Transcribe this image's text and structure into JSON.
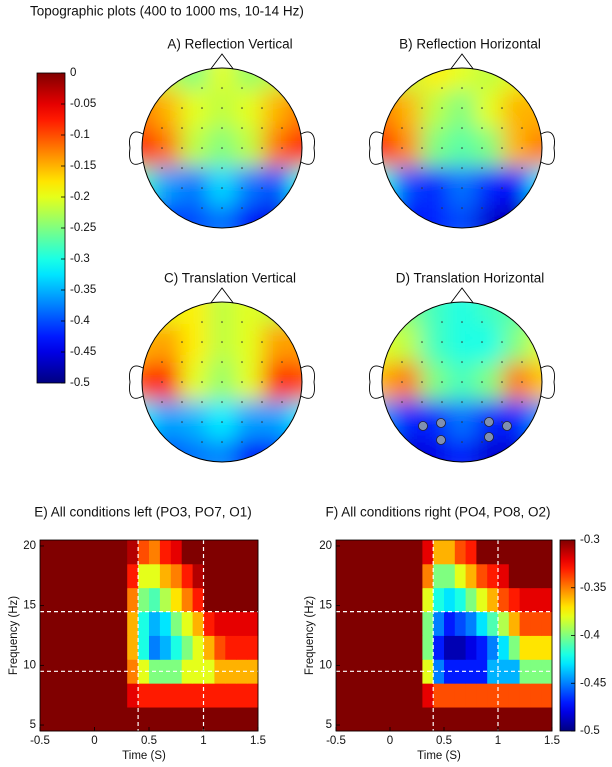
{
  "header": {
    "title": "Topographic plots (400 to 1000 ms, 10-14 Hz)"
  },
  "chart_data": [
    {
      "type": "topomap",
      "colormap": "jet",
      "clim": [
        -0.5,
        0
      ],
      "cticks": [
        0,
        -0.05,
        -0.1,
        -0.15,
        -0.2,
        -0.25,
        -0.3,
        -0.35,
        -0.4,
        -0.45,
        -0.5
      ],
      "panels": [
        {
          "title": "A) Reflection Vertical",
          "values": [
            [
              -0.2,
              -0.22,
              -0.25,
              -0.2,
              -0.24,
              -0.22,
              -0.2
            ],
            [
              -0.12,
              -0.15,
              -0.2,
              -0.22,
              -0.2,
              -0.15,
              -0.12
            ],
            [
              -0.08,
              -0.12,
              -0.22,
              -0.25,
              -0.22,
              -0.12,
              -0.07
            ],
            [
              -0.28,
              -0.36,
              -0.38,
              -0.33,
              -0.38,
              -0.4,
              -0.3
            ],
            [
              -0.35,
              -0.42,
              -0.4,
              -0.38,
              -0.44,
              -0.45,
              -0.38
            ]
          ]
        },
        {
          "title": "B) Reflection Horizontal",
          "values": [
            [
              -0.22,
              -0.22,
              -0.18,
              -0.2,
              -0.22,
              -0.2,
              -0.2
            ],
            [
              -0.12,
              -0.15,
              -0.22,
              -0.25,
              -0.2,
              -0.15,
              -0.15
            ],
            [
              -0.07,
              -0.13,
              -0.25,
              -0.27,
              -0.25,
              -0.15,
              -0.12
            ],
            [
              -0.3,
              -0.4,
              -0.42,
              -0.38,
              -0.42,
              -0.44,
              -0.32
            ],
            [
              -0.36,
              -0.44,
              -0.42,
              -0.4,
              -0.46,
              -0.48,
              -0.4
            ]
          ]
        },
        {
          "title": "C) Translation Vertical",
          "values": [
            [
              -0.2,
              -0.2,
              -0.18,
              -0.22,
              -0.2,
              -0.22,
              -0.2
            ],
            [
              -0.15,
              -0.14,
              -0.18,
              -0.22,
              -0.2,
              -0.14,
              -0.14
            ],
            [
              -0.1,
              -0.07,
              -0.2,
              -0.24,
              -0.2,
              -0.08,
              -0.1
            ],
            [
              -0.32,
              -0.36,
              -0.35,
              -0.32,
              -0.36,
              -0.36,
              -0.32
            ],
            [
              -0.36,
              -0.4,
              -0.38,
              -0.37,
              -0.44,
              -0.42,
              -0.38
            ]
          ]
        },
        {
          "title": "D) Translation Horizontal",
          "values": [
            [
              -0.25,
              -0.25,
              -0.28,
              -0.3,
              -0.28,
              -0.27,
              -0.25
            ],
            [
              -0.2,
              -0.22,
              -0.28,
              -0.3,
              -0.3,
              -0.25,
              -0.2
            ],
            [
              -0.15,
              -0.12,
              -0.25,
              -0.28,
              -0.25,
              -0.12,
              -0.16
            ],
            [
              -0.36,
              -0.42,
              -0.42,
              -0.38,
              -0.42,
              -0.42,
              -0.36
            ],
            [
              -0.42,
              -0.46,
              -0.45,
              -0.42,
              -0.46,
              -0.46,
              -0.42
            ]
          ]
        }
      ]
    },
    {
      "type": "heatmap",
      "colormap": "jet",
      "clim": [
        -0.5,
        -0.3
      ],
      "cticks": [
        -0.3,
        -0.35,
        -0.4,
        -0.45,
        -0.5
      ],
      "xlabel": "Time (S)",
      "ylabel": "Frequency (Hz)",
      "xlim": [
        -0.5,
        1.5
      ],
      "ylim": [
        4.5,
        20.5
      ],
      "xticks": [
        -0.5,
        0,
        0.5,
        1,
        1.5
      ],
      "yticks": [
        5,
        10,
        15,
        20
      ],
      "ref_lines": {
        "x": [
          0.4,
          1
        ],
        "y": [
          9.5,
          14.5
        ]
      },
      "x_edges": [
        -0.5,
        -0.4,
        -0.3,
        -0.2,
        -0.1,
        0,
        0.1,
        0.2,
        0.3,
        0.4,
        0.5,
        0.6,
        0.7,
        0.8,
        0.9,
        1,
        1.1,
        1.2,
        1.3,
        1.4,
        1.5
      ],
      "y_edges": [
        4.5,
        6.5,
        8.5,
        10.5,
        12.5,
        14.5,
        16.5,
        18.5,
        20.5
      ],
      "panels": [
        {
          "title": "E) All conditions left (PO3, PO7, O1)",
          "values": [
            [
              -0.3,
              -0.3,
              -0.3,
              -0.3,
              -0.3,
              -0.3,
              -0.3,
              -0.3,
              -0.3,
              -0.3,
              -0.3,
              -0.3,
              -0.3,
              -0.3,
              -0.3,
              -0.3,
              -0.3,
              -0.3,
              -0.3,
              -0.3
            ],
            [
              -0.3,
              -0.3,
              -0.3,
              -0.3,
              -0.3,
              -0.3,
              -0.3,
              -0.3,
              -0.32,
              -0.33,
              -0.33,
              -0.33,
              -0.33,
              -0.33,
              -0.33,
              -0.33,
              -0.33,
              -0.33,
              -0.33,
              -0.33
            ],
            [
              -0.3,
              -0.3,
              -0.3,
              -0.3,
              -0.3,
              -0.3,
              -0.3,
              -0.3,
              -0.35,
              -0.38,
              -0.4,
              -0.4,
              -0.4,
              -0.38,
              -0.38,
              -0.38,
              -0.36,
              -0.36,
              -0.36,
              -0.36
            ],
            [
              -0.3,
              -0.3,
              -0.3,
              -0.3,
              -0.3,
              -0.3,
              -0.3,
              -0.3,
              -0.36,
              -0.42,
              -0.45,
              -0.44,
              -0.42,
              -0.4,
              -0.38,
              -0.36,
              -0.34,
              -0.33,
              -0.33,
              -0.33
            ],
            [
              -0.3,
              -0.3,
              -0.3,
              -0.3,
              -0.3,
              -0.3,
              -0.3,
              -0.3,
              -0.36,
              -0.42,
              -0.44,
              -0.43,
              -0.4,
              -0.38,
              -0.36,
              -0.33,
              -0.32,
              -0.32,
              -0.32,
              -0.32
            ],
            [
              -0.3,
              -0.3,
              -0.3,
              -0.3,
              -0.3,
              -0.3,
              -0.3,
              -0.3,
              -0.35,
              -0.4,
              -0.41,
              -0.39,
              -0.37,
              -0.35,
              -0.33,
              -0.3,
              -0.3,
              -0.3,
              -0.3,
              -0.3
            ],
            [
              -0.3,
              -0.3,
              -0.3,
              -0.3,
              -0.3,
              -0.3,
              -0.3,
              -0.3,
              -0.33,
              -0.38,
              -0.38,
              -0.36,
              -0.35,
              -0.33,
              -0.31,
              -0.3,
              -0.3,
              -0.3,
              -0.3,
              -0.3
            ],
            [
              -0.3,
              -0.3,
              -0.3,
              -0.3,
              -0.3,
              -0.3,
              -0.3,
              -0.3,
              -0.31,
              -0.34,
              -0.35,
              -0.33,
              -0.32,
              -0.3,
              -0.3,
              -0.3,
              -0.3,
              -0.3,
              -0.3,
              -0.3
            ]
          ]
        },
        {
          "title": "F) All conditions right (PO4, PO8, O2)",
          "values": [
            [
              -0.3,
              -0.3,
              -0.3,
              -0.3,
              -0.3,
              -0.3,
              -0.3,
              -0.3,
              -0.3,
              -0.3,
              -0.3,
              -0.3,
              -0.3,
              -0.3,
              -0.3,
              -0.3,
              -0.3,
              -0.3,
              -0.3,
              -0.3
            ],
            [
              -0.3,
              -0.3,
              -0.3,
              -0.3,
              -0.3,
              -0.3,
              -0.3,
              -0.3,
              -0.32,
              -0.34,
              -0.34,
              -0.34,
              -0.34,
              -0.34,
              -0.34,
              -0.34,
              -0.34,
              -0.34,
              -0.34,
              -0.34
            ],
            [
              -0.3,
              -0.3,
              -0.3,
              -0.3,
              -0.3,
              -0.3,
              -0.3,
              -0.3,
              -0.38,
              -0.45,
              -0.47,
              -0.47,
              -0.47,
              -0.47,
              -0.44,
              -0.44,
              -0.44,
              -0.4,
              -0.4,
              -0.4
            ],
            [
              -0.3,
              -0.3,
              -0.3,
              -0.3,
              -0.3,
              -0.3,
              -0.3,
              -0.3,
              -0.4,
              -0.47,
              -0.49,
              -0.49,
              -0.48,
              -0.47,
              -0.45,
              -0.43,
              -0.4,
              -0.37,
              -0.37,
              -0.37
            ],
            [
              -0.3,
              -0.3,
              -0.3,
              -0.3,
              -0.3,
              -0.3,
              -0.3,
              -0.3,
              -0.4,
              -0.45,
              -0.47,
              -0.46,
              -0.45,
              -0.43,
              -0.41,
              -0.39,
              -0.36,
              -0.34,
              -0.34,
              -0.34
            ],
            [
              -0.3,
              -0.3,
              -0.3,
              -0.3,
              -0.3,
              -0.3,
              -0.3,
              -0.3,
              -0.38,
              -0.42,
              -0.43,
              -0.42,
              -0.4,
              -0.38,
              -0.36,
              -0.34,
              -0.33,
              -0.32,
              -0.32,
              -0.32
            ],
            [
              -0.3,
              -0.3,
              -0.3,
              -0.3,
              -0.3,
              -0.3,
              -0.3,
              -0.3,
              -0.35,
              -0.4,
              -0.4,
              -0.38,
              -0.36,
              -0.34,
              -0.33,
              -0.32,
              -0.3,
              -0.3,
              -0.3,
              -0.3
            ],
            [
              -0.3,
              -0.3,
              -0.3,
              -0.3,
              -0.3,
              -0.3,
              -0.3,
              -0.3,
              -0.32,
              -0.36,
              -0.36,
              -0.34,
              -0.33,
              -0.3,
              -0.3,
              -0.3,
              -0.3,
              -0.3,
              -0.3,
              -0.3
            ]
          ]
        }
      ]
    }
  ]
}
